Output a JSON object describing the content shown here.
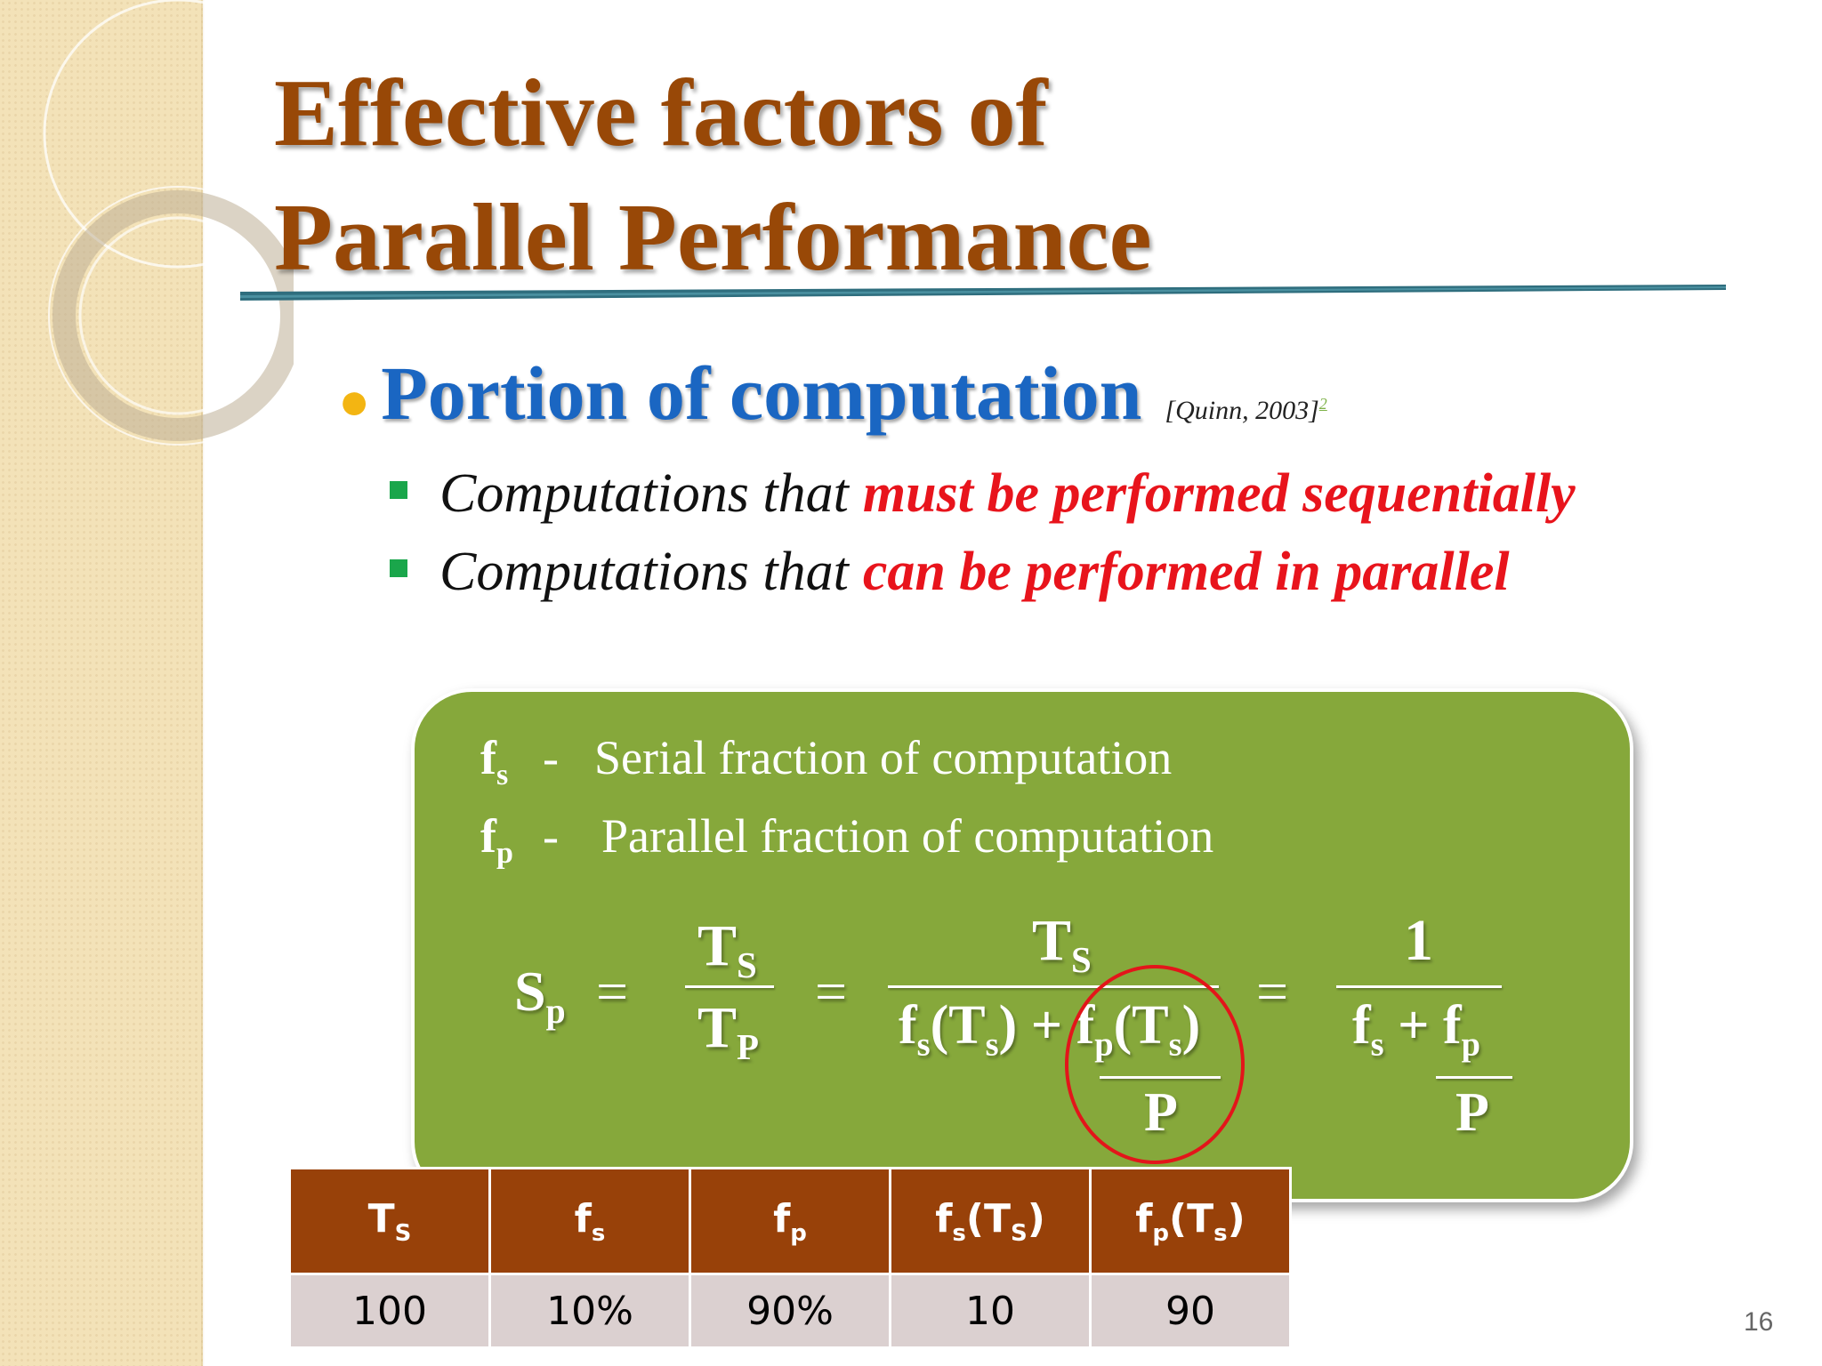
{
  "slide": {
    "title_line1": "Effective factors of",
    "title_line2": "Parallel Performance",
    "bullet": {
      "text": "Portion of computation",
      "citation": "[Quinn, 2003]",
      "citation_ref": "2"
    },
    "sub_bullets": [
      {
        "prefix": "Computations that",
        "highlight": "must be performed sequentially"
      },
      {
        "prefix": "Computations that",
        "highlight": "can be performed in parallel"
      }
    ],
    "definitions": [
      {
        "symbol": "f",
        "subscript": "s",
        "dash": "-",
        "text": "Serial fraction of computation"
      },
      {
        "symbol": "f",
        "subscript": "p",
        "dash": "-",
        "text": "Parallel fraction of computation"
      }
    ],
    "formula": {
      "lhs": "S",
      "lhs_sub": "p",
      "eq": "=",
      "t": "T",
      "s_sub": "S",
      "p_sub": "P",
      "f": "f",
      "fs_sub": "s",
      "fp_sub": "p",
      "ts_sub": "s",
      "plus": "+",
      "open": "(",
      "close": ")",
      "one": "1",
      "P": "P"
    },
    "table": {
      "headers": [
        {
          "main": "T",
          "sub": "S",
          "tail": ""
        },
        {
          "main": "f",
          "sub": "s",
          "tail": ""
        },
        {
          "main": "f",
          "sub": "p",
          "tail": ""
        },
        {
          "main": "f",
          "sub": "s",
          "tail": "(T",
          "sub2": "S",
          "tail2": ")"
        },
        {
          "main": "f",
          "sub": "p",
          "tail": "(T",
          "sub2": "s",
          "tail2": ")"
        }
      ],
      "row": [
        "100",
        "10%",
        "90%",
        "10",
        "90"
      ]
    },
    "page_number": "16",
    "colors": {
      "title": "#984807",
      "bullet": "#1a66c2",
      "highlight": "#e8141c",
      "box": "#86a83b",
      "table_header": "#984109",
      "table_row": "#dbd0d0",
      "circle": "#e3151a"
    }
  }
}
